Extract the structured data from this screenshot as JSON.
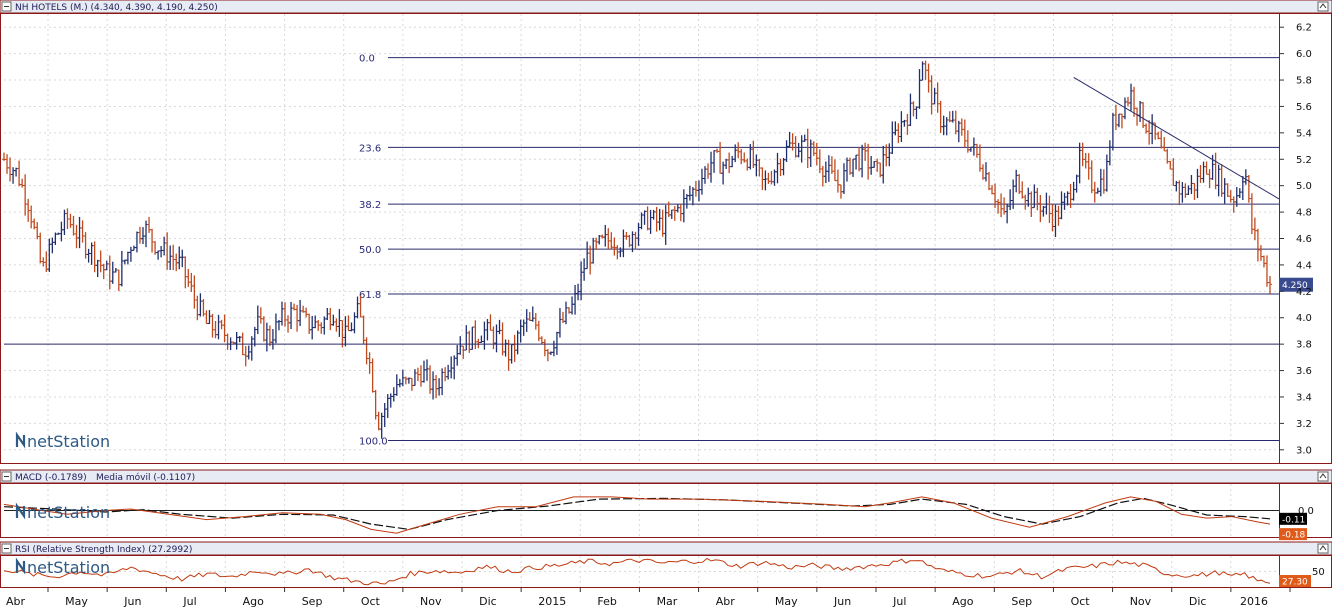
{
  "chart_data": [
    {
      "type": "candlestick",
      "title": "NH HOTELS (M.) (4.340, 4.390, 4.190, 4.250)",
      "series": [
        {
          "name": "NH HOTELS",
          "last": 4.25
        }
      ],
      "ylim": [
        2.9,
        6.3
      ],
      "yticks": [
        3.0,
        3.2,
        3.4,
        3.6,
        3.8,
        4.0,
        4.2,
        4.4,
        4.6,
        4.8,
        5.0,
        5.2,
        5.4,
        5.6,
        5.8,
        6.0,
        6.2
      ],
      "last_badge": "4.250",
      "support_line": 3.8,
      "fibonacci": [
        {
          "label": "0.0",
          "value": 5.97
        },
        {
          "label": "23.6",
          "value": 5.29
        },
        {
          "label": "38.2",
          "value": 4.86
        },
        {
          "label": "50.0",
          "value": 4.52
        },
        {
          "label": "61.8",
          "value": 4.18
        },
        {
          "label": "100.0",
          "value": 3.07
        }
      ],
      "trendline": [
        [
          0.845,
          5.82
        ],
        [
          1.0,
          4.9
        ]
      ],
      "close_path": [
        [
          0.0,
          5.2
        ],
        [
          0.01,
          5.1
        ],
        [
          0.02,
          4.85
        ],
        [
          0.03,
          4.35
        ],
        [
          0.04,
          4.6
        ],
        [
          0.05,
          4.75
        ],
        [
          0.06,
          4.6
        ],
        [
          0.07,
          4.5
        ],
        [
          0.08,
          4.35
        ],
        [
          0.09,
          4.3
        ],
        [
          0.1,
          4.55
        ],
        [
          0.11,
          4.7
        ],
        [
          0.12,
          4.55
        ],
        [
          0.14,
          4.4
        ],
        [
          0.15,
          4.15
        ],
        [
          0.16,
          3.95
        ],
        [
          0.17,
          3.9
        ],
        [
          0.18,
          3.85
        ],
        [
          0.19,
          3.75
        ],
        [
          0.2,
          3.95
        ],
        [
          0.21,
          3.85
        ],
        [
          0.22,
          4.0
        ],
        [
          0.23,
          4.05
        ],
        [
          0.24,
          3.95
        ],
        [
          0.25,
          3.95
        ],
        [
          0.26,
          4.05
        ],
        [
          0.27,
          3.85
        ],
        [
          0.28,
          4.05
        ],
        [
          0.29,
          3.6
        ],
        [
          0.295,
          3.2
        ],
        [
          0.3,
          3.3
        ],
        [
          0.31,
          3.5
        ],
        [
          0.32,
          3.5
        ],
        [
          0.33,
          3.6
        ],
        [
          0.34,
          3.45
        ],
        [
          0.35,
          3.65
        ],
        [
          0.36,
          3.8
        ],
        [
          0.37,
          3.85
        ],
        [
          0.38,
          3.9
        ],
        [
          0.39,
          3.85
        ],
        [
          0.4,
          3.7
        ],
        [
          0.41,
          3.95
        ],
        [
          0.42,
          3.95
        ],
        [
          0.43,
          3.75
        ],
        [
          0.44,
          3.95
        ],
        [
          0.45,
          4.1
        ],
        [
          0.46,
          4.45
        ],
        [
          0.47,
          4.55
        ],
        [
          0.48,
          4.6
        ],
        [
          0.49,
          4.55
        ],
        [
          0.5,
          4.7
        ],
        [
          0.51,
          4.75
        ],
        [
          0.52,
          4.7
        ],
        [
          0.53,
          4.8
        ],
        [
          0.54,
          4.9
        ],
        [
          0.55,
          5.05
        ],
        [
          0.56,
          5.2
        ],
        [
          0.57,
          5.15
        ],
        [
          0.58,
          5.25
        ],
        [
          0.59,
          5.2
        ],
        [
          0.6,
          5.0
        ],
        [
          0.61,
          5.15
        ],
        [
          0.62,
          5.3
        ],
        [
          0.63,
          5.3
        ],
        [
          0.64,
          5.25
        ],
        [
          0.65,
          5.1
        ],
        [
          0.66,
          5.0
        ],
        [
          0.67,
          5.2
        ],
        [
          0.68,
          5.2
        ],
        [
          0.69,
          5.1
        ],
        [
          0.7,
          5.3
        ],
        [
          0.71,
          5.5
        ],
        [
          0.72,
          5.6
        ],
        [
          0.725,
          5.98
        ],
        [
          0.73,
          5.75
        ],
        [
          0.74,
          5.5
        ],
        [
          0.75,
          5.45
        ],
        [
          0.76,
          5.35
        ],
        [
          0.77,
          5.2
        ],
        [
          0.78,
          5.0
        ],
        [
          0.79,
          4.75
        ],
        [
          0.8,
          5.05
        ],
        [
          0.81,
          4.9
        ],
        [
          0.82,
          4.85
        ],
        [
          0.83,
          4.75
        ],
        [
          0.84,
          4.9
        ],
        [
          0.85,
          5.2
        ],
        [
          0.86,
          5.0
        ],
        [
          0.87,
          5.05
        ],
        [
          0.875,
          5.45
        ],
        [
          0.88,
          5.55
        ],
        [
          0.89,
          5.7
        ],
        [
          0.9,
          5.5
        ],
        [
          0.91,
          5.35
        ],
        [
          0.92,
          5.1
        ],
        [
          0.93,
          4.95
        ],
        [
          0.94,
          5.0
        ],
        [
          0.95,
          5.15
        ],
        [
          0.96,
          5.05
        ],
        [
          0.97,
          4.9
        ],
        [
          0.975,
          4.95
        ],
        [
          0.98,
          5.15
        ],
        [
          0.985,
          4.7
        ],
        [
          0.99,
          4.55
        ],
        [
          0.995,
          4.4
        ],
        [
          1.0,
          4.25
        ]
      ],
      "watermark": "netStation"
    },
    {
      "type": "line",
      "title": "MACD (-0.1789)",
      "series": [
        {
          "name": "MACD",
          "value_label": "-0.1789",
          "color": "#c13a10",
          "badge": "-0.18",
          "badge_color": "#e05a1a"
        },
        {
          "name": "Media móvil",
          "value_label": "-0.1107",
          "color": "#111111",
          "badge": "-0.11",
          "badge_color": "#000000"
        }
      ],
      "subtitle": "Media móvil (-0.1107)",
      "yticks": [
        0.0
      ],
      "ytick_labels": [
        "0.0"
      ],
      "ylim": [
        -0.35,
        0.35
      ],
      "macd_path": [
        [
          0.0,
          0.08
        ],
        [
          0.03,
          0.0
        ],
        [
          0.05,
          -0.05
        ],
        [
          0.08,
          0.0
        ],
        [
          0.1,
          0.02
        ],
        [
          0.13,
          -0.05
        ],
        [
          0.16,
          -0.12
        ],
        [
          0.19,
          -0.08
        ],
        [
          0.22,
          -0.03
        ],
        [
          0.25,
          -0.05
        ],
        [
          0.27,
          -0.12
        ],
        [
          0.29,
          -0.25
        ],
        [
          0.31,
          -0.3
        ],
        [
          0.33,
          -0.2
        ],
        [
          0.36,
          -0.05
        ],
        [
          0.39,
          0.05
        ],
        [
          0.42,
          0.05
        ],
        [
          0.45,
          0.18
        ],
        [
          0.48,
          0.18
        ],
        [
          0.51,
          0.15
        ],
        [
          0.55,
          0.15
        ],
        [
          0.6,
          0.12
        ],
        [
          0.65,
          0.08
        ],
        [
          0.68,
          0.05
        ],
        [
          0.7,
          0.1
        ],
        [
          0.725,
          0.18
        ],
        [
          0.75,
          0.1
        ],
        [
          0.78,
          -0.1
        ],
        [
          0.81,
          -0.22
        ],
        [
          0.84,
          -0.08
        ],
        [
          0.87,
          0.1
        ],
        [
          0.89,
          0.18
        ],
        [
          0.91,
          0.12
        ],
        [
          0.93,
          -0.05
        ],
        [
          0.95,
          -0.1
        ],
        [
          0.97,
          -0.08
        ],
        [
          0.99,
          -0.15
        ],
        [
          1.0,
          -0.18
        ]
      ],
      "signal_path": [
        [
          0.0,
          0.05
        ],
        [
          0.04,
          0.02
        ],
        [
          0.08,
          -0.02
        ],
        [
          0.11,
          0.01
        ],
        [
          0.14,
          -0.05
        ],
        [
          0.18,
          -0.1
        ],
        [
          0.22,
          -0.05
        ],
        [
          0.26,
          -0.06
        ],
        [
          0.29,
          -0.18
        ],
        [
          0.32,
          -0.25
        ],
        [
          0.35,
          -0.12
        ],
        [
          0.39,
          0.0
        ],
        [
          0.43,
          0.06
        ],
        [
          0.47,
          0.15
        ],
        [
          0.52,
          0.16
        ],
        [
          0.57,
          0.14
        ],
        [
          0.62,
          0.1
        ],
        [
          0.67,
          0.06
        ],
        [
          0.7,
          0.08
        ],
        [
          0.725,
          0.15
        ],
        [
          0.76,
          0.08
        ],
        [
          0.79,
          -0.08
        ],
        [
          0.82,
          -0.18
        ],
        [
          0.85,
          -0.08
        ],
        [
          0.88,
          0.1
        ],
        [
          0.9,
          0.16
        ],
        [
          0.92,
          0.08
        ],
        [
          0.95,
          -0.06
        ],
        [
          0.98,
          -0.08
        ],
        [
          1.0,
          -0.11
        ]
      ],
      "watermark": "netStation"
    },
    {
      "type": "line",
      "title": "RSI (Relative Strength Index) (27.2992)",
      "series": [
        {
          "name": "RSI",
          "value_label": "27.2992",
          "color": "#c13a10",
          "badge": "27.30",
          "badge_color": "#e05a1a"
        }
      ],
      "yticks": [
        50
      ],
      "ylim": [
        20,
        80
      ],
      "rsi_path": [
        [
          0.0,
          55
        ],
        [
          0.02,
          45
        ],
        [
          0.04,
          40
        ],
        [
          0.06,
          50
        ],
        [
          0.08,
          42
        ],
        [
          0.1,
          58
        ],
        [
          0.12,
          46
        ],
        [
          0.14,
          35
        ],
        [
          0.16,
          45
        ],
        [
          0.18,
          40
        ],
        [
          0.2,
          52
        ],
        [
          0.22,
          44
        ],
        [
          0.24,
          55
        ],
        [
          0.26,
          38
        ],
        [
          0.28,
          30
        ],
        [
          0.3,
          25
        ],
        [
          0.32,
          45
        ],
        [
          0.34,
          52
        ],
        [
          0.36,
          48
        ],
        [
          0.38,
          60
        ],
        [
          0.4,
          50
        ],
        [
          0.42,
          58
        ],
        [
          0.44,
          62
        ],
        [
          0.46,
          70
        ],
        [
          0.48,
          65
        ],
        [
          0.5,
          72
        ],
        [
          0.52,
          66
        ],
        [
          0.54,
          70
        ],
        [
          0.56,
          72
        ],
        [
          0.58,
          60
        ],
        [
          0.6,
          68
        ],
        [
          0.62,
          58
        ],
        [
          0.64,
          62
        ],
        [
          0.66,
          55
        ],
        [
          0.68,
          60
        ],
        [
          0.7,
          66
        ],
        [
          0.72,
          74
        ],
        [
          0.74,
          52
        ],
        [
          0.76,
          45
        ],
        [
          0.78,
          40
        ],
        [
          0.8,
          52
        ],
        [
          0.82,
          40
        ],
        [
          0.84,
          55
        ],
        [
          0.86,
          60
        ],
        [
          0.88,
          68
        ],
        [
          0.9,
          62
        ],
        [
          0.92,
          45
        ],
        [
          0.94,
          42
        ],
        [
          0.96,
          48
        ],
        [
          0.97,
          40
        ],
        [
          0.98,
          45
        ],
        [
          0.99,
          32
        ],
        [
          1.0,
          27.3
        ]
      ],
      "watermark": "netStation"
    }
  ],
  "x_axis": {
    "labels": [
      "Abr",
      "May",
      "Jun",
      "Jul",
      "Ago",
      "Sep",
      "Oct",
      "Nov",
      "Dic",
      "2015",
      "Feb",
      "Mar",
      "Abr",
      "May",
      "Jun",
      "Jul",
      "Ago",
      "Sep",
      "Oct",
      "Nov",
      "Dic",
      "2016"
    ]
  },
  "colors": {
    "up_bar": "#1f2f6e",
    "down_bar": "#c04a1e",
    "fib_line": "#2a2a6a",
    "grid": "#d9d9d9",
    "frame": "#7a1010",
    "header_bg": "#e7ebf3",
    "badge_bg": "#3a4a8e"
  }
}
